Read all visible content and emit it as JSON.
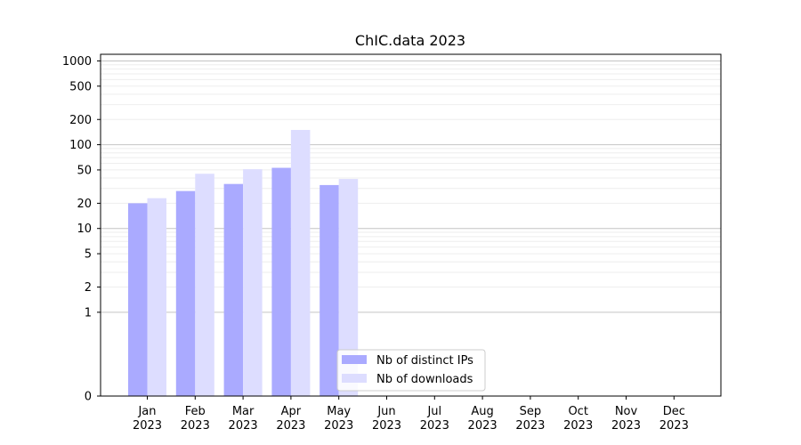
{
  "chart_data": {
    "type": "bar",
    "title": "ChIC.data 2023",
    "xlabel": "",
    "ylabel": "",
    "y_scale": "symlog",
    "ylim": [
      0,
      1200
    ],
    "y_ticks": [
      "0",
      "1",
      "2",
      "5",
      "10",
      "20",
      "50",
      "100",
      "200",
      "500",
      "1000"
    ],
    "categories": [
      {
        "month": "Jan",
        "year": "2023"
      },
      {
        "month": "Feb",
        "year": "2023"
      },
      {
        "month": "Mar",
        "year": "2023"
      },
      {
        "month": "Apr",
        "year": "2023"
      },
      {
        "month": "May",
        "year": "2023"
      },
      {
        "month": "Jun",
        "year": "2023"
      },
      {
        "month": "Jul",
        "year": "2023"
      },
      {
        "month": "Aug",
        "year": "2023"
      },
      {
        "month": "Sep",
        "year": "2023"
      },
      {
        "month": "Oct",
        "year": "2023"
      },
      {
        "month": "Nov",
        "year": "2023"
      },
      {
        "month": "Dec",
        "year": "2023"
      }
    ],
    "series": [
      {
        "name": "Nb of distinct IPs",
        "color": "#aaaaff",
        "values": [
          20,
          28,
          34,
          53,
          33,
          0,
          0,
          0,
          0,
          0,
          0,
          0
        ]
      },
      {
        "name": "Nb of downloads",
        "color": "#ddddff",
        "values": [
          23,
          45,
          51,
          150,
          39,
          0,
          0,
          0,
          0,
          0,
          0,
          0
        ]
      }
    ],
    "grid": true,
    "legend_position": "lower-center"
  }
}
